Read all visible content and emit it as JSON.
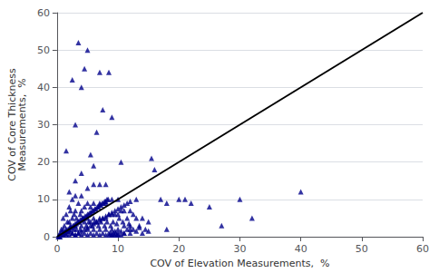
{
  "chart_data": {
    "type": "scatter",
    "xlabel": "COV of Elevation Measurements,  %",
    "ylabel": "COV of Core Thickness\nMeasurements,  %",
    "xlim": [
      0,
      60
    ],
    "ylim": [
      0,
      60
    ],
    "xticks": [
      0,
      10,
      20,
      30,
      40,
      50,
      60
    ],
    "yticks": [
      0,
      10,
      20,
      30,
      40,
      50,
      60
    ],
    "grid": true,
    "series": [
      {
        "type": "scatter",
        "color": "#00008B",
        "marker": "triangle",
        "x": [
          0.3,
          0.5,
          0.7,
          0.8,
          1.0,
          1.0,
          1.0,
          1.2,
          1.3,
          1.5,
          1.5,
          1.5,
          1.7,
          1.8,
          2.0,
          2.0,
          2.0,
          2.0,
          2.0,
          2.2,
          2.2,
          2.5,
          2.5,
          2.5,
          2.8,
          2.8,
          3.0,
          3.0,
          3.0,
          3.0,
          3.0,
          3.2,
          3.2,
          3.5,
          3.5,
          3.5,
          3.8,
          3.8,
          4.0,
          4.0,
          4.0,
          4.0,
          4.0,
          4.2,
          4.5,
          4.5,
          4.5,
          4.8,
          5.0,
          5.0,
          5.0,
          5.0,
          5.0,
          5.2,
          5.5,
          5.5,
          5.5,
          5.8,
          6.0,
          6.0,
          6.0,
          6.0,
          6.0,
          6.0,
          6.2,
          6.5,
          6.5,
          6.8,
          7.0,
          7.0,
          7.0,
          7.0,
          7.0,
          7.2,
          7.5,
          7.5,
          7.8,
          8.0,
          8.0,
          8.0,
          8.0,
          8.0,
          8.2,
          8.5,
          8.5,
          8.8,
          9.0,
          9.0,
          9.0,
          9.0,
          9.2,
          9.5,
          9.5,
          9.8,
          10.0,
          10.0,
          10.0,
          10.0,
          10.2,
          10.5,
          10.5,
          10.8,
          11.0,
          11.0,
          11.0,
          11.5,
          11.5,
          11.8,
          12.0,
          12.0,
          12.0,
          12.5,
          12.5,
          13.0,
          13.0,
          13.5,
          14.0,
          14.0,
          14.5,
          15.0,
          15.5,
          16.0,
          17.0,
          18.0,
          20.0,
          22.0,
          25.0,
          30.0,
          32.0,
          40.0,
          1.5,
          2.5,
          3.5,
          4.5,
          5.5,
          6.5,
          7.5,
          8.5,
          3.0,
          4.0,
          5.0,
          7.0,
          9.0,
          10.5,
          0.5,
          1.0,
          1.5,
          2.0,
          2.5,
          3.0,
          3.5,
          4.0,
          4.5,
          5.0,
          5.5,
          6.0,
          6.5,
          7.0,
          7.5,
          8.0,
          8.5,
          9.0,
          9.5,
          10.0,
          10.5,
          11.0,
          11.5,
          12.0,
          13.0,
          0.2,
          0.4,
          0.6,
          0.8,
          1.0,
          1.2,
          1.4,
          1.6,
          1.8,
          2.0,
          2.2,
          2.4,
          2.6,
          2.8,
          3.0,
          3.2,
          3.4,
          3.6,
          3.8,
          4.0,
          4.2,
          4.4,
          4.6,
          4.8,
          5.0,
          5.2,
          5.4,
          5.6,
          5.8,
          6.0,
          6.2,
          6.4,
          6.6,
          6.8,
          7.0,
          7.2,
          7.4,
          7.6,
          7.8,
          8.0,
          8.2,
          8.4,
          8.6,
          8.8,
          9.0,
          9.2,
          9.4,
          9.6,
          9.8,
          10.0,
          10.5,
          11.0,
          12.0,
          13.5,
          15.0,
          18.0,
          21.0,
          27.0
        ],
        "values": [
          0.5,
          1.0,
          2.0,
          1.5,
          0.5,
          2.0,
          5.0,
          3.0,
          1.0,
          0.5,
          2.0,
          6.0,
          4.0,
          1.5,
          0.5,
          2.0,
          4.0,
          8.0,
          12.0,
          3.0,
          7.0,
          1.0,
          5.0,
          10.0,
          2.0,
          6.0,
          0.5,
          3.0,
          7.0,
          11.0,
          15.0,
          2.0,
          5.0,
          1.0,
          4.0,
          9.0,
          2.0,
          6.0,
          0.5,
          3.0,
          7.0,
          11.0,
          17.0,
          5.0,
          1.0,
          4.0,
          8.0,
          3.0,
          0.5,
          2.0,
          5.0,
          9.0,
          13.0,
          4.0,
          1.0,
          4.0,
          8.0,
          3.0,
          0.5,
          2.0,
          5.0,
          9.0,
          14.0,
          19.0,
          4.0,
          1.0,
          4.0,
          3.0,
          0.5,
          2.0,
          5.0,
          9.0,
          14.0,
          4.0,
          1.0,
          5.0,
          3.0,
          0.5,
          2.0,
          5.0,
          9.0,
          14.0,
          4.0,
          1.0,
          6.0,
          3.0,
          0.5,
          2.0,
          6.0,
          10.0,
          4.0,
          1.5,
          6.0,
          3.5,
          0.5,
          2.0,
          6.0,
          10.0,
          5.0,
          1.5,
          7.0,
          4.0,
          1.0,
          3.0,
          7.0,
          2.0,
          5.0,
          3.5,
          1.0,
          3.0,
          7.0,
          2.0,
          6.0,
          1.5,
          5.0,
          2.5,
          1.0,
          5.0,
          2.0,
          1.5,
          21.0,
          18.0,
          10.0,
          9.0,
          10.0,
          9.0,
          8.0,
          10.0,
          5.0,
          12.0,
          23.0,
          42.0,
          52.0,
          45.0,
          22.0,
          28.0,
          34.0,
          44.0,
          30.0,
          40.0,
          50.0,
          44.0,
          32.0,
          20.0,
          0.0,
          0.5,
          1.0,
          1.5,
          1.0,
          0.5,
          1.0,
          1.5,
          2.0,
          2.5,
          3.0,
          3.5,
          4.0,
          4.5,
          5.0,
          5.5,
          6.0,
          6.5,
          7.0,
          7.5,
          8.0,
          8.5,
          9.0,
          9.5,
          10.0,
          0.0,
          0.0,
          0.5,
          0.5,
          1.0,
          1.0,
          1.5,
          1.5,
          2.0,
          2.0,
          2.5,
          2.5,
          3.0,
          3.0,
          3.5,
          3.5,
          4.0,
          4.0,
          4.5,
          4.5,
          5.0,
          5.0,
          5.5,
          5.5,
          6.0,
          6.0,
          6.5,
          6.5,
          7.0,
          7.0,
          7.5,
          7.5,
          8.0,
          8.0,
          8.5,
          8.5,
          9.0,
          9.0,
          9.5,
          9.5,
          10.0,
          10.0,
          0.5,
          1.0,
          0.5,
          1.0,
          0.5,
          1.0,
          0.5,
          1.0,
          0.5,
          1.0,
          2.0,
          3.0,
          4.0,
          2.0,
          10.0,
          3.0
        ]
      },
      {
        "type": "line",
        "color": "#000000",
        "x": [
          0,
          60
        ],
        "values": [
          0,
          60
        ]
      }
    ]
  }
}
